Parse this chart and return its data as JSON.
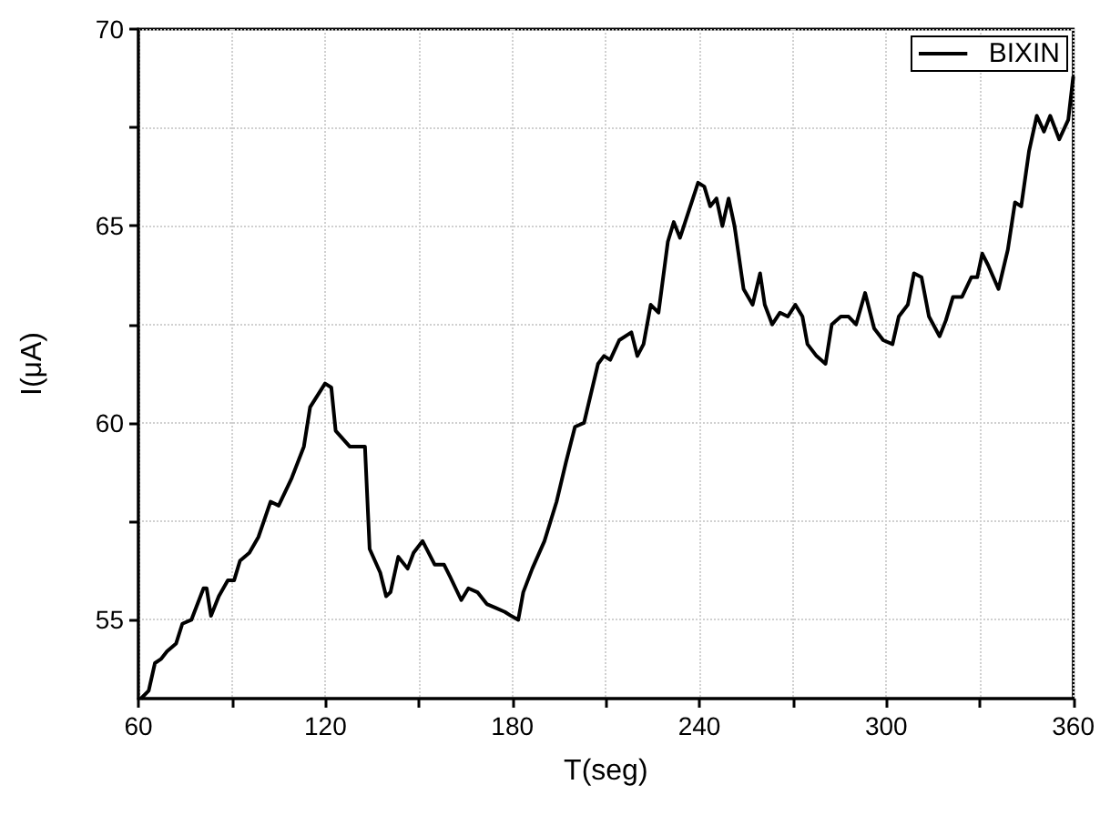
{
  "chart_data": {
    "type": "line",
    "xlabel": "T(seg)",
    "ylabel": "I(μA)",
    "xlim": [
      60,
      360
    ],
    "ylim": [
      53,
      70
    ],
    "xticks": [
      60,
      {
        "value": 90,
        "label": null
      },
      120,
      {
        "value": 150,
        "label": null
      },
      180,
      {
        "value": 210,
        "label": null
      },
      240,
      {
        "value": 270,
        "label": null
      },
      300,
      {
        "value": 330,
        "label": null
      },
      360
    ],
    "yticks": [
      55,
      {
        "value": 57.5,
        "label": null
      },
      60,
      {
        "value": 62.5,
        "label": null
      },
      65,
      {
        "value": 67.5,
        "label": null
      },
      70
    ],
    "grid": true,
    "legend": "top right",
    "marker": "none",
    "line_style": "solid",
    "series": [
      {
        "name": "BIXIN",
        "color": "#000000",
        "x": [
          60.8,
          63.3,
          65.3,
          67.2,
          69.2,
          72.1,
          74.1,
          77.0,
          80.9,
          81.9,
          83.3,
          85.8,
          88.7,
          90.7,
          92.6,
          95.6,
          98.5,
          102.4,
          105.0,
          109.2,
          113.1,
          115.1,
          119.9,
          121.9,
          123.3,
          127.8,
          131.7,
          132.7,
          134.2,
          137.6,
          139.5,
          140.9,
          143.4,
          146.4,
          148.3,
          151.2,
          155.1,
          158.1,
          160.0,
          163.6,
          165.9,
          168.8,
          171.8,
          174.7,
          177.6,
          179.6,
          181.9,
          183.5,
          186.4,
          190.3,
          194.2,
          197.2,
          200.1,
          203.0,
          204.5,
          207.5,
          209.4,
          211.4,
          214.3,
          218.2,
          220.1,
          222.1,
          224.4,
          226.9,
          229.9,
          231.8,
          233.8,
          236.7,
          239.6,
          241.6,
          243.5,
          245.5,
          247.4,
          249.4,
          251.3,
          254.2,
          257.1,
          259.5,
          261.0,
          263.4,
          265.9,
          268.4,
          270.8,
          273.1,
          274.7,
          277.6,
          280.5,
          282.5,
          285.4,
          287.9,
          290.3,
          293.2,
          296.1,
          299.0,
          302.0,
          304.0,
          306.9,
          308.9,
          311.3,
          313.7,
          317.1,
          319.1,
          321.4,
          324.3,
          327.3,
          329.2,
          330.8,
          332.7,
          336.0,
          339.0,
          341.3,
          343.3,
          345.8,
          348.3,
          350.6,
          352.6,
          355.5,
          358.4,
          360
        ],
        "values": [
          53.0,
          53.2,
          53.9,
          54.0,
          54.2,
          54.4,
          54.9,
          55.0,
          55.8,
          55.8,
          55.1,
          55.6,
          56.0,
          56.0,
          56.5,
          56.7,
          57.1,
          58.0,
          57.9,
          58.6,
          59.4,
          60.4,
          61.0,
          60.9,
          59.8,
          59.4,
          59.4,
          59.4,
          56.8,
          56.2,
          55.6,
          55.7,
          56.6,
          56.3,
          56.7,
          57.0,
          56.4,
          56.4,
          56.1,
          55.5,
          55.8,
          55.7,
          55.4,
          55.3,
          55.2,
          55.1,
          55.0,
          55.7,
          56.3,
          57.0,
          58.0,
          59.0,
          59.9,
          60.0,
          60.5,
          61.5,
          61.7,
          61.6,
          62.1,
          62.3,
          61.7,
          62.0,
          63.0,
          62.8,
          64.6,
          65.1,
          64.7,
          65.4,
          66.1,
          66.0,
          65.5,
          65.7,
          65.0,
          65.7,
          65.0,
          63.4,
          63.0,
          63.8,
          63.0,
          62.5,
          62.8,
          62.7,
          63.0,
          62.7,
          62.0,
          61.7,
          61.5,
          62.5,
          62.7,
          62.7,
          62.5,
          63.3,
          62.4,
          62.1,
          62.0,
          62.7,
          63.0,
          63.8,
          63.7,
          62.7,
          62.2,
          62.6,
          63.2,
          63.2,
          63.7,
          63.7,
          64.3,
          64.0,
          63.4,
          64.4,
          65.6,
          65.5,
          66.9,
          67.8,
          67.4,
          67.8,
          67.2,
          67.7,
          68.8
        ]
      }
    ]
  }
}
